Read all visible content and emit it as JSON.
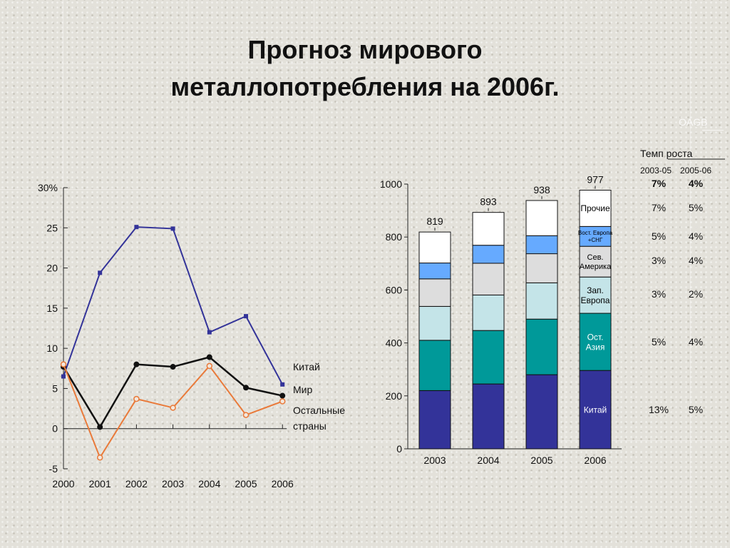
{
  "page": {
    "title_line1": "Прогноз мирового",
    "title_line2": "металлопотребления на 2006г.",
    "watermark": "OAGB"
  },
  "chart_data": [
    {
      "type": "line",
      "x": [
        "2000",
        "2001",
        "2002",
        "2003",
        "2004",
        "2005",
        "2006"
      ],
      "y_ticks": [
        "30%",
        "25",
        "20",
        "15",
        "10",
        "5",
        "0",
        "-5"
      ],
      "ylim": [
        -5,
        30
      ],
      "series": [
        {
          "name": "Китай",
          "color": "#333399",
          "values": [
            6.5,
            19.4,
            25.1,
            24.9,
            12.0,
            14.0,
            5.5
          ]
        },
        {
          "name": "Мир",
          "color": "#111111",
          "values": [
            7.7,
            0.2,
            8.0,
            7.7,
            8.9,
            5.1,
            4.1
          ]
        },
        {
          "name": "Остальные страны",
          "color": "#e97a3a",
          "values": [
            8.0,
            -3.6,
            3.7,
            2.6,
            7.8,
            1.7,
            3.4
          ]
        }
      ],
      "legend_lines": [
        "Китай",
        "Мир",
        "Остальные",
        "страны"
      ]
    },
    {
      "type": "bar",
      "stacked": true,
      "categories": [
        "2003",
        "2004",
        "2005",
        "2006"
      ],
      "y_ticks": [
        "1000",
        "800",
        "600",
        "400",
        "200",
        "0"
      ],
      "ylim": [
        0,
        1000
      ],
      "totals": [
        "819",
        "893",
        "938",
        "977"
      ],
      "series": [
        {
          "name": "Китай",
          "color": "#333399",
          "values": [
            220,
            245,
            280,
            296
          ]
        },
        {
          "name": "Ост. Азия",
          "color": "#009999",
          "values": [
            190,
            202,
            210,
            216
          ]
        },
        {
          "name": "Зап. Европа",
          "color": "#c4e4e8",
          "values": [
            128,
            134,
            137,
            137
          ]
        },
        {
          "name": "Сев. Америка",
          "color": "#dddddd",
          "values": [
            104,
            120,
            110,
            116
          ]
        },
        {
          "name": "Вост. Европа +СНГ",
          "color": "#66aaff",
          "values": [
            60,
            68,
            68,
            75
          ]
        },
        {
          "name": "Прочие",
          "color": "#ffffff",
          "values": [
            117,
            124,
            133,
            137
          ]
        }
      ],
      "segment_labels_2006": [
        {
          "lines": [
            "Китай"
          ],
          "color": "#ffffff",
          "size": 12
        },
        {
          "lines": [
            "Ост.",
            "Азия"
          ],
          "color": "#ffffff",
          "size": 12
        },
        {
          "lines": [
            "Зап.",
            "Европа"
          ],
          "color": "#000000",
          "size": 12
        },
        {
          "lines": [
            "Сев.",
            "Америка"
          ],
          "color": "#000000",
          "size": 11
        },
        {
          "lines": [
            "Вост. Европа",
            "+СНГ"
          ],
          "color": "#000000",
          "size": 8
        },
        {
          "lines": [
            "Прочие"
          ],
          "color": "#000000",
          "size": 12
        }
      ],
      "growth_table": {
        "header": "Темп роста",
        "columns": [
          "2003-05",
          "2005-06"
        ],
        "rows": [
          {
            "a": "7%",
            "b": "4%",
            "bold": true
          },
          {
            "a": "7%",
            "b": "5%"
          },
          {
            "a": "5%",
            "b": "4%"
          },
          {
            "a": "3%",
            "b": "4%"
          },
          {
            "a": "3%",
            "b": "2%"
          },
          {
            "a": "5%",
            "b": "4%"
          },
          {
            "a": "13%",
            "b": "5%"
          }
        ]
      }
    }
  ]
}
